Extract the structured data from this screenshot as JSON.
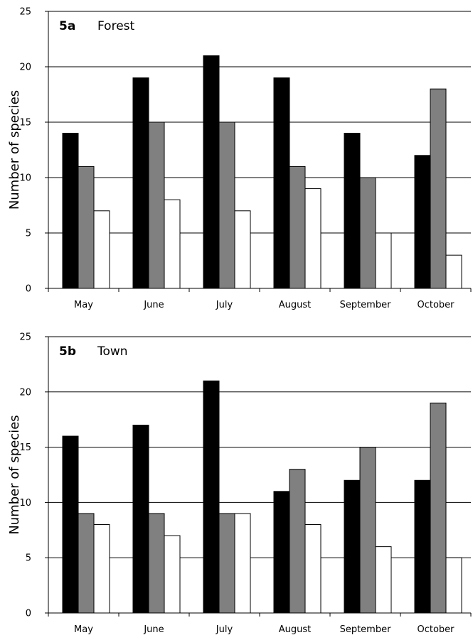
{
  "chart_data": [
    {
      "type": "bar",
      "panel_label": "5a",
      "title": "Forest",
      "ylabel": "Number of species",
      "xlabel": "",
      "categories": [
        "May",
        "June",
        "July",
        "August",
        "September",
        "October"
      ],
      "ylim": [
        0,
        25
      ],
      "yticks": [
        "0",
        "5",
        "10",
        "15",
        "20",
        "25"
      ],
      "grid": true,
      "legend": "none",
      "series": [
        {
          "color": "#000000",
          "values": [
            14,
            19,
            21,
            19,
            14,
            12
          ]
        },
        {
          "color": "#808080",
          "values": [
            11,
            15,
            15,
            11,
            10,
            18
          ]
        },
        {
          "color": "#ffffff",
          "values": [
            7,
            8,
            7,
            9,
            5,
            3
          ]
        }
      ]
    },
    {
      "type": "bar",
      "panel_label": "5b",
      "title": "Town",
      "ylabel": "Number of species",
      "xlabel": "",
      "categories": [
        "May",
        "June",
        "July",
        "August",
        "September",
        "October"
      ],
      "ylim": [
        0,
        25
      ],
      "yticks": [
        "0",
        "5",
        "10",
        "15",
        "20",
        "25"
      ],
      "grid": true,
      "legend": "none",
      "series": [
        {
          "color": "#000000",
          "values": [
            16,
            17,
            21,
            11,
            12,
            12
          ]
        },
        {
          "color": "#808080",
          "values": [
            9,
            9,
            9,
            13,
            15,
            19
          ]
        },
        {
          "color": "#ffffff",
          "values": [
            8,
            7,
            9,
            8,
            6,
            5
          ]
        }
      ]
    }
  ]
}
